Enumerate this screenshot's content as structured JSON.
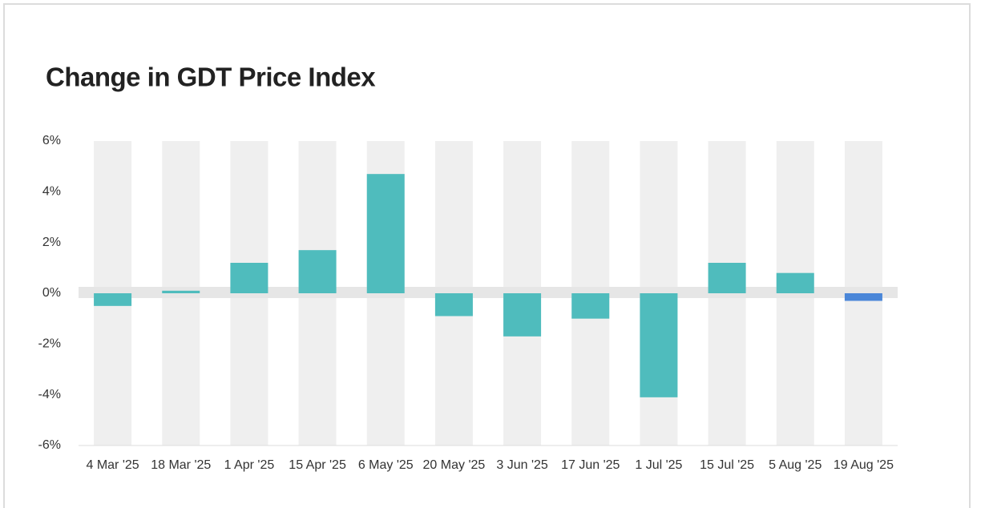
{
  "chart_data": {
    "type": "bar",
    "title": "Change in GDT Price Index",
    "categories": [
      "4 Mar '25",
      "18 Mar '25",
      "1 Apr '25",
      "15 Apr '25",
      "6 May '25",
      "20 May '25",
      "3 Jun '25",
      "17 Jun '25",
      "1 Jul '25",
      "15 Jul '25",
      "5 Aug '25",
      "19 Aug '25"
    ],
    "values": [
      -0.5,
      0.1,
      1.2,
      1.7,
      4.7,
      -0.9,
      -1.7,
      -1.0,
      -4.1,
      1.2,
      0.8,
      -0.3
    ],
    "colors": [
      "#4fbcbd",
      "#4fbcbd",
      "#4fbcbd",
      "#4fbcbd",
      "#4fbcbd",
      "#4fbcbd",
      "#4fbcbd",
      "#4fbcbd",
      "#4fbcbd",
      "#4fbcbd",
      "#4fbcbd",
      "#4a86d8"
    ],
    "ylim": [
      -6,
      6
    ],
    "yticks": [
      {
        "value": -6,
        "label": "-6%"
      },
      {
        "value": -4,
        "label": "-4%"
      },
      {
        "value": -2,
        "label": "-2%"
      },
      {
        "value": 0,
        "label": "0%"
      },
      {
        "value": 2,
        "label": "2%"
      },
      {
        "value": 4,
        "label": "4%"
      },
      {
        "value": 6,
        "label": "6%"
      }
    ],
    "grid": false
  }
}
